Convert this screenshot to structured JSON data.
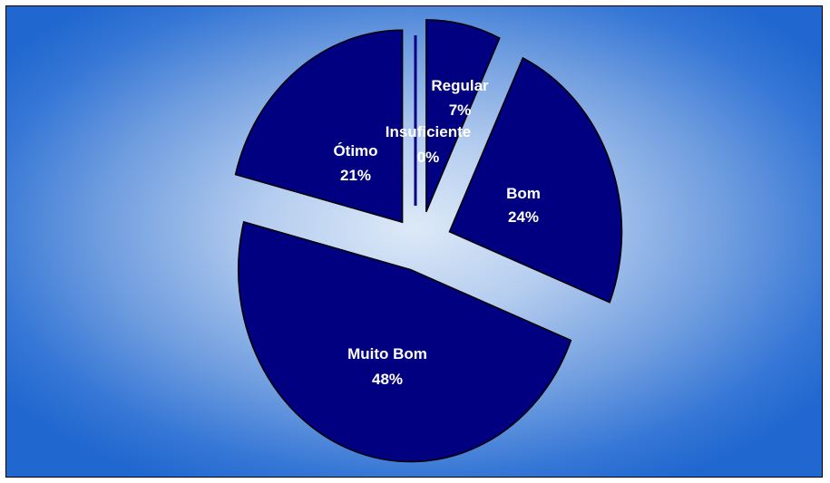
{
  "chart_data": {
    "type": "pie",
    "title": "",
    "slices": [
      {
        "label": "Regular",
        "value": 7,
        "display": "7%"
      },
      {
        "label": "Bom",
        "value": 24,
        "display": "24%"
      },
      {
        "label": "Muito Bom",
        "value": 48,
        "display": "48%"
      },
      {
        "label": "Ótimo",
        "value": 21,
        "display": "21%"
      },
      {
        "label": "Insuficiente",
        "value": 0,
        "display": "0%"
      }
    ],
    "exploded": true,
    "colors": {
      "slice_fill": "#000080",
      "slice_stroke": "#000000",
      "label_text": "#ffffff",
      "background_center": "#dde9f7",
      "background_edge": "#2067cf"
    }
  }
}
